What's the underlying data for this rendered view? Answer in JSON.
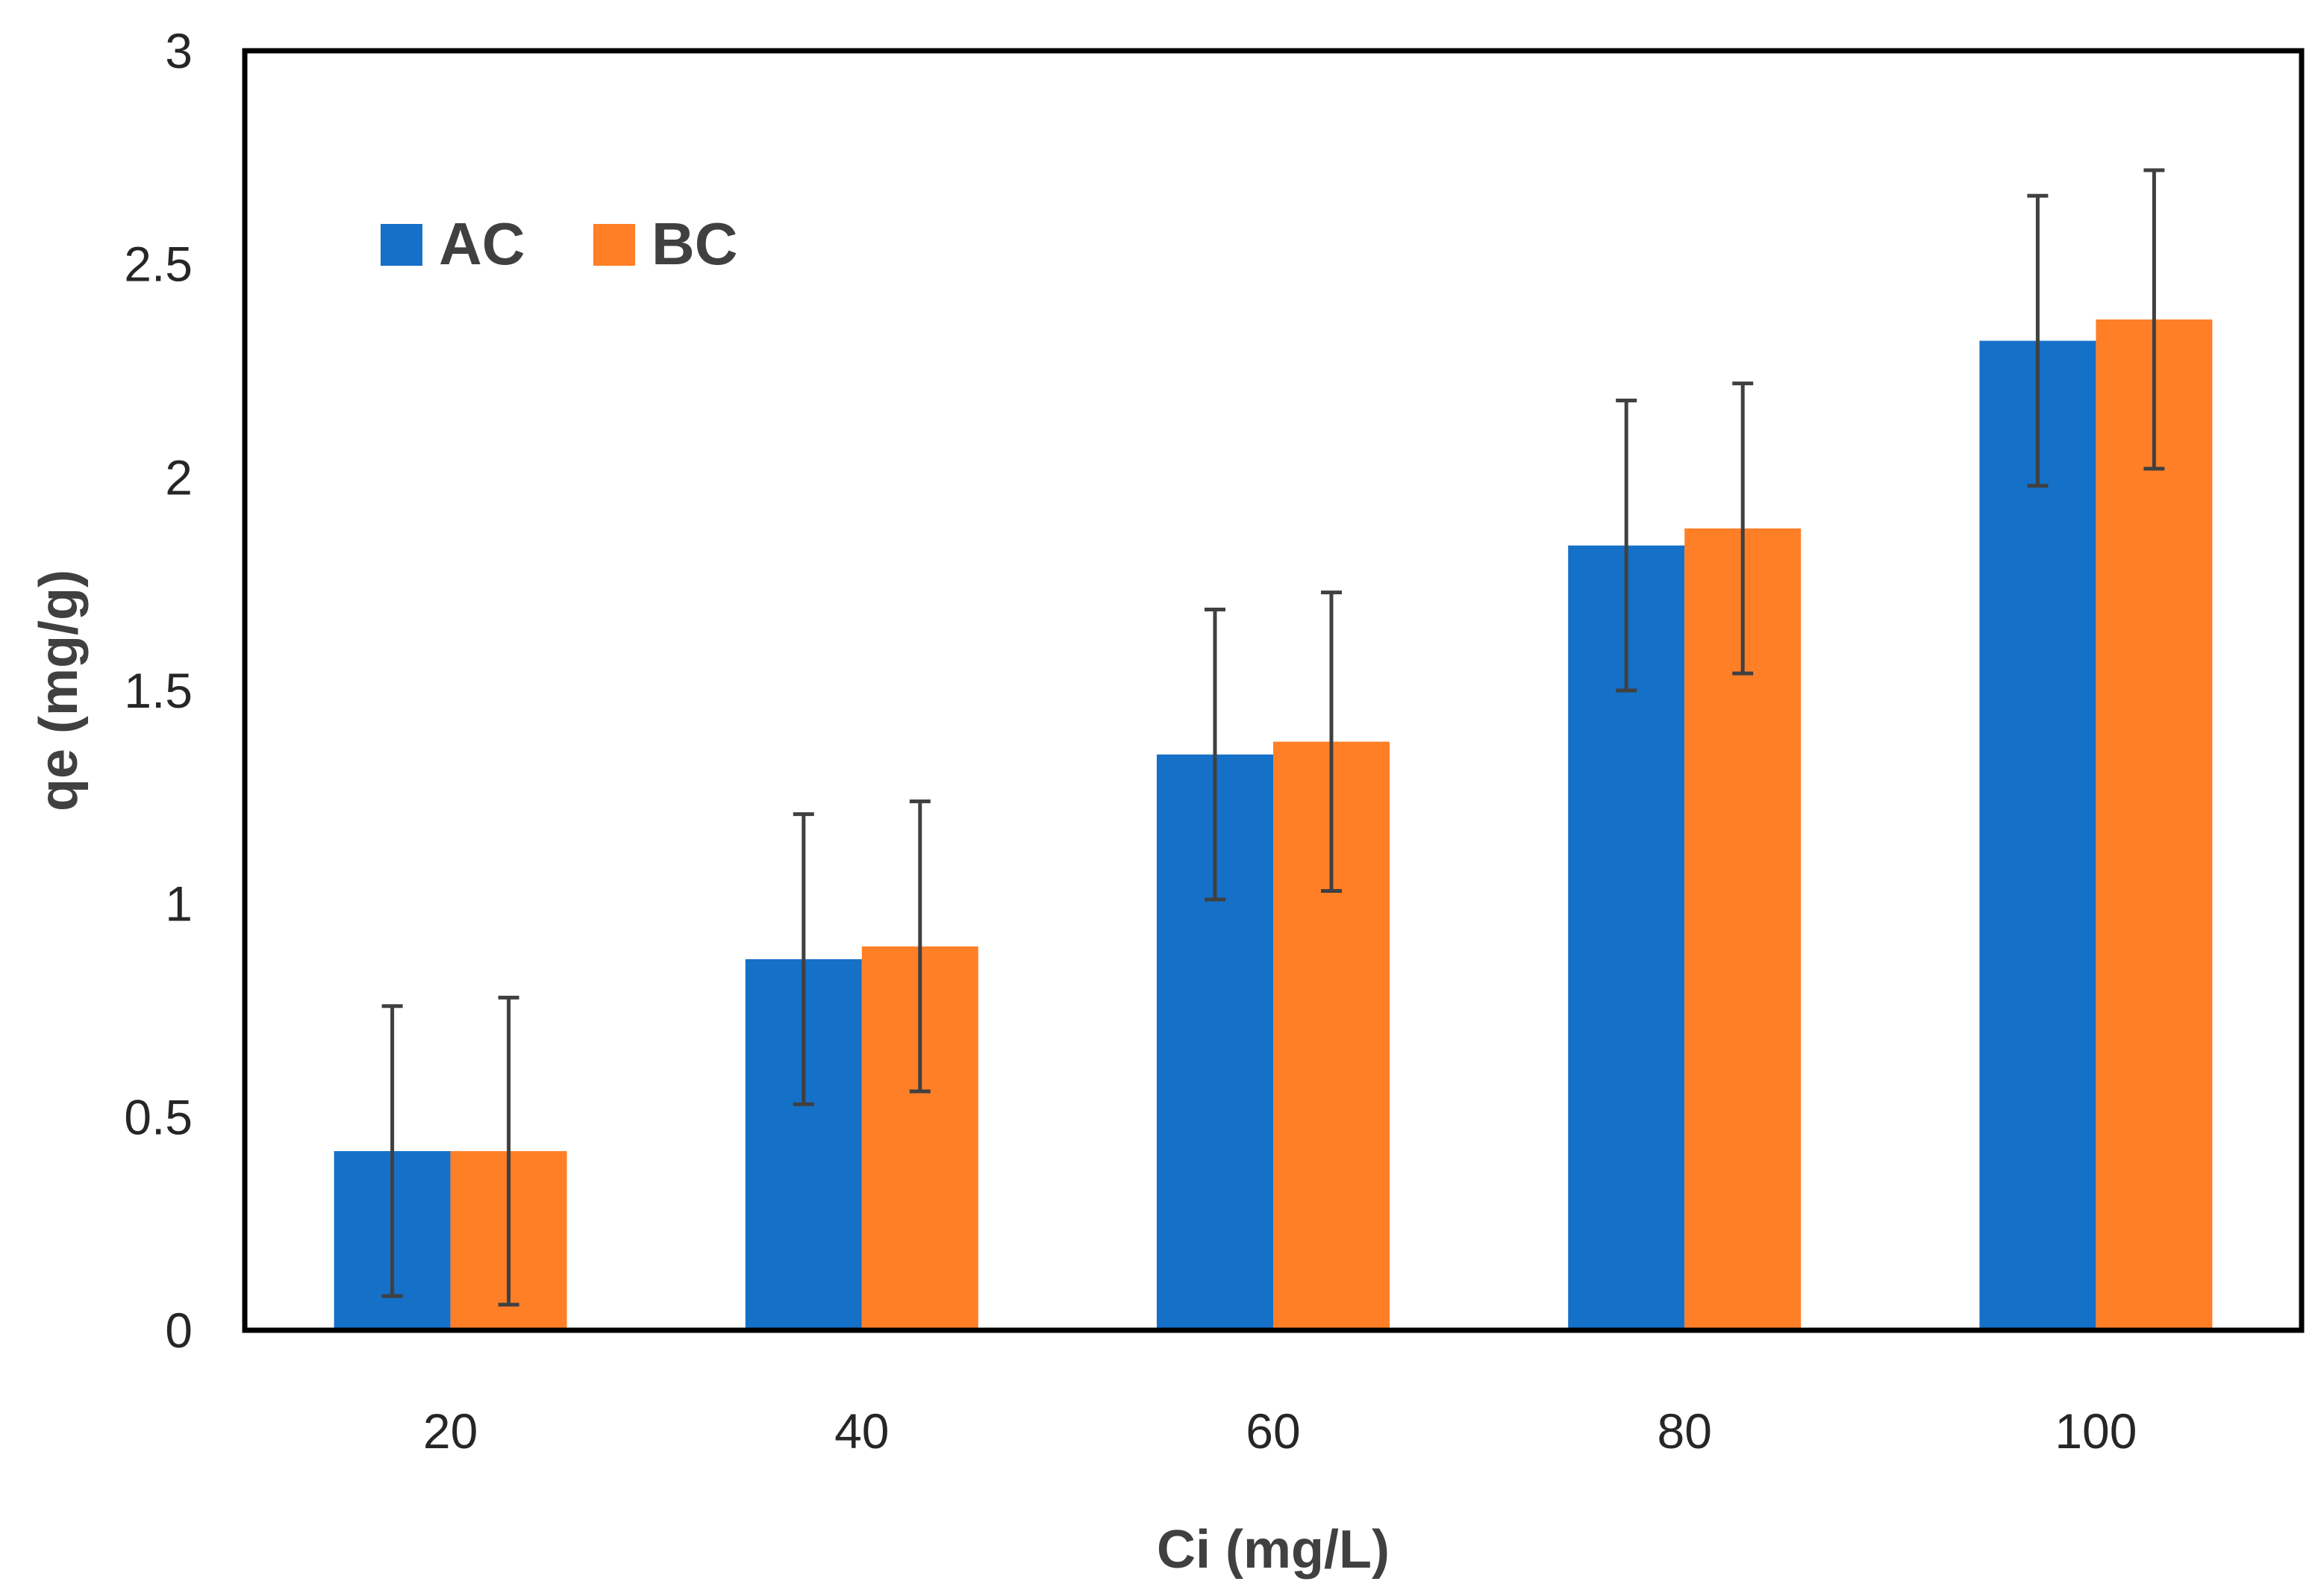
{
  "chart_data": {
    "type": "bar",
    "title": "",
    "xlabel": "Ci (mg/L)",
    "ylabel": "qe (mg/g)",
    "categories": [
      "20",
      "40",
      "60",
      "80",
      "100"
    ],
    "ylim": [
      0,
      3
    ],
    "yticks": [
      "0",
      "0.5",
      "1",
      "1.5",
      "2",
      "2.5",
      "3"
    ],
    "grid": false,
    "legend_position": "top-left",
    "series": [
      {
        "name": "AC",
        "color": "#1570C8",
        "values": [
          0.42,
          0.87,
          1.35,
          1.84,
          2.32
        ],
        "error": [
          0.34,
          0.34,
          0.34,
          0.34,
          0.34
        ]
      },
      {
        "name": "BC",
        "color": "#FF7F27",
        "values": [
          0.42,
          0.9,
          1.38,
          1.88,
          2.37
        ],
        "error": [
          0.36,
          0.34,
          0.35,
          0.34,
          0.35
        ]
      }
    ],
    "error_bar_color": "#404040"
  }
}
